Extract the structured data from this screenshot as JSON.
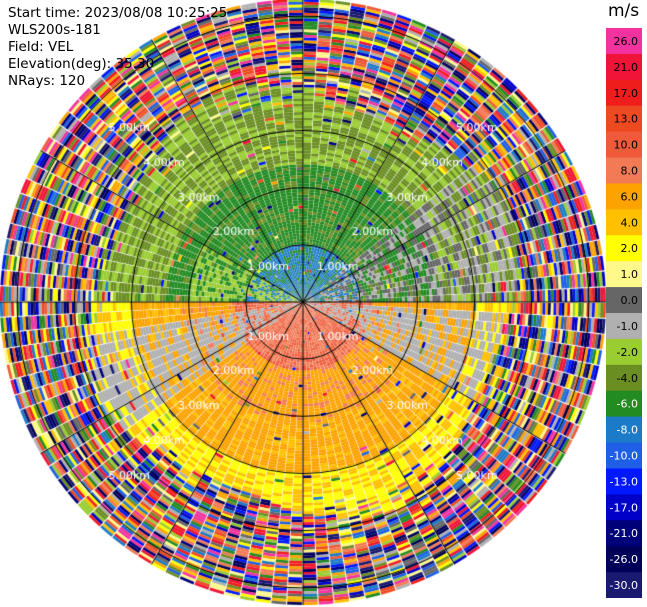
{
  "header": {
    "start_time": "Start time: 2023/08/08 10:25:25",
    "instrument": "WLS200s-181",
    "field": "Field: VEL",
    "elevation": "Elevation(deg): 35.30",
    "nrays": "NRays: 120"
  },
  "chart_data": {
    "type": "heatmap",
    "projection": "polar-ppi",
    "field": "VEL",
    "unit": "m/s",
    "nrays": 120,
    "elevation_deg": 35.3,
    "range_max_km": 5.3,
    "range_rings_km": [
      1.0,
      2.0,
      3.0,
      4.0,
      5.0
    ],
    "ring_labels": [
      "1.00km",
      "2.00km",
      "3.00km",
      "4.00km",
      "5.00km"
    ],
    "colorbar": {
      "unit_label": "m/s",
      "ticks": [
        "26.0",
        "21.0",
        "17.0",
        "13.0",
        "10.0",
        "8.0",
        "6.0",
        "4.0",
        "2.0",
        "1.0",
        "0.0",
        "-1.0",
        "-2.0",
        "-4.0",
        "-6.0",
        "-8.0",
        "-10.0",
        "-13.0",
        "-17.0",
        "-21.0",
        "-26.0",
        "-30.0"
      ],
      "colors": [
        "#f2339f",
        "#f01438",
        "#f01d1d",
        "#ee4a22",
        "#ee5a3a",
        "#f27b55",
        "#fca300",
        "#ffc000",
        "#ffff00",
        "#fff98c",
        "#666666",
        "#b0b0b0",
        "#9acd32",
        "#6b8e23",
        "#228b22",
        "#1c7bc8",
        "#1f5fe5",
        "#0018ff",
        "#0000c8",
        "#00007a",
        "#000058",
        "#191970"
      ]
    }
  }
}
